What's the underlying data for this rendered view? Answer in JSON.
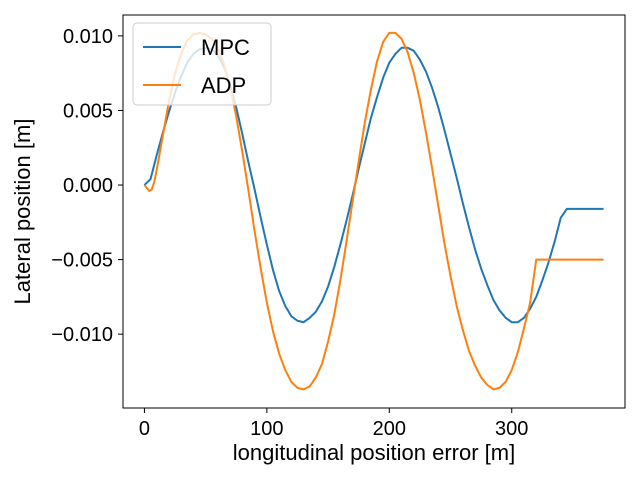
{
  "chart_data": {
    "type": "line",
    "title": "",
    "xlabel": "longitudinal position error [m]",
    "ylabel": "Lateral position [m]",
    "xlim": [
      -17.5,
      392.5
    ],
    "ylim": [
      -0.01495,
      0.0114
    ],
    "xticks": [
      0,
      100,
      200,
      300
    ],
    "xtick_labels": [
      "0",
      "100",
      "200",
      "300"
    ],
    "yticks": [
      -0.01,
      -0.005,
      0.0,
      0.005,
      0.01
    ],
    "ytick_labels": [
      "−0.010",
      "−0.005",
      "0.000",
      "0.005",
      "0.010"
    ],
    "grid": false,
    "legend": {
      "placement": "top-left"
    },
    "series": [
      {
        "name": "MPC",
        "color": "#1f77b4",
        "x": [
          0,
          5,
          10,
          15,
          20,
          25,
          30,
          35,
          40,
          45,
          50,
          55,
          60,
          65,
          70,
          75,
          80,
          85,
          90,
          95,
          100,
          105,
          110,
          115,
          120,
          125,
          130,
          135,
          140,
          145,
          150,
          155,
          160,
          165,
          170,
          175,
          180,
          185,
          190,
          195,
          200,
          205,
          210,
          215,
          220,
          225,
          230,
          235,
          240,
          245,
          250,
          255,
          260,
          265,
          270,
          275,
          280,
          285,
          290,
          295,
          300,
          305,
          310,
          315,
          320,
          325,
          330,
          335,
          340,
          345,
          350,
          355,
          360,
          365,
          370,
          375
        ],
        "y": [
          0.0,
          0.0004,
          0.002,
          0.0035,
          0.0049,
          0.0062,
          0.0073,
          0.0082,
          0.0088,
          0.0091,
          0.0092,
          0.0091,
          0.0087,
          0.0079,
          0.0067,
          0.0052,
          0.0034,
          0.0015,
          -0.0003,
          -0.0022,
          -0.004,
          -0.0057,
          -0.0071,
          -0.0081,
          -0.0088,
          -0.0091,
          -0.0092,
          -0.0089,
          -0.0085,
          -0.0078,
          -0.0068,
          -0.0055,
          -0.004,
          -0.0024,
          -0.0007,
          0.0011,
          0.0028,
          0.0045,
          0.0059,
          0.0072,
          0.0082,
          0.0088,
          0.0092,
          0.0092,
          0.009,
          0.0084,
          0.0076,
          0.0065,
          0.0052,
          0.0037,
          0.0021,
          0.0005,
          -0.0012,
          -0.0028,
          -0.0043,
          -0.0056,
          -0.0067,
          -0.0077,
          -0.0084,
          -0.0089,
          -0.0092,
          -0.0092,
          -0.0089,
          -0.0083,
          -0.0075,
          -0.0064,
          -0.0052,
          -0.0038,
          -0.0022,
          -0.0016,
          -0.0016,
          -0.0016,
          -0.0016,
          -0.0016,
          -0.0016,
          -0.0016
        ]
      },
      {
        "name": "ADP",
        "color": "#ff7f0e",
        "x": [
          0,
          2,
          4,
          6,
          8,
          10,
          15,
          20,
          25,
          30,
          35,
          40,
          45,
          50,
          55,
          60,
          65,
          70,
          75,
          80,
          85,
          90,
          95,
          100,
          105,
          110,
          115,
          120,
          125,
          130,
          135,
          140,
          145,
          150,
          155,
          160,
          165,
          170,
          175,
          180,
          185,
          190,
          195,
          200,
          205,
          210,
          215,
          220,
          225,
          230,
          235,
          240,
          245,
          250,
          255,
          260,
          265,
          270,
          275,
          280,
          285,
          290,
          295,
          300,
          305,
          310,
          315,
          320,
          325,
          330,
          335,
          340,
          345,
          350,
          355,
          360,
          365,
          370,
          375
        ],
        "y": [
          0.0,
          -0.0002,
          -0.0004,
          -0.0003,
          0.0002,
          0.001,
          0.0033,
          0.0056,
          0.0075,
          0.0088,
          0.0097,
          0.0101,
          0.0102,
          0.0101,
          0.0098,
          0.0092,
          0.0081,
          0.0066,
          0.0046,
          0.0022,
          -0.0004,
          -0.0031,
          -0.0056,
          -0.0079,
          -0.0098,
          -0.0113,
          -0.0124,
          -0.0132,
          -0.0136,
          -0.0137,
          -0.0135,
          -0.0129,
          -0.012,
          -0.0105,
          -0.0087,
          -0.0064,
          -0.0038,
          -0.0011,
          0.0016,
          0.0042,
          0.0064,
          0.0083,
          0.0096,
          0.0102,
          0.0102,
          0.0098,
          0.0089,
          0.0075,
          0.0057,
          0.0035,
          0.0011,
          -0.0014,
          -0.0039,
          -0.0061,
          -0.0081,
          -0.0097,
          -0.0111,
          -0.0121,
          -0.0129,
          -0.0134,
          -0.0137,
          -0.0136,
          -0.0132,
          -0.0124,
          -0.0112,
          -0.0096,
          -0.0079,
          -0.005,
          -0.005,
          -0.005,
          -0.005,
          -0.005,
          -0.005,
          -0.005,
          -0.005,
          -0.005,
          -0.005,
          -0.005,
          -0.005
        ]
      }
    ]
  }
}
